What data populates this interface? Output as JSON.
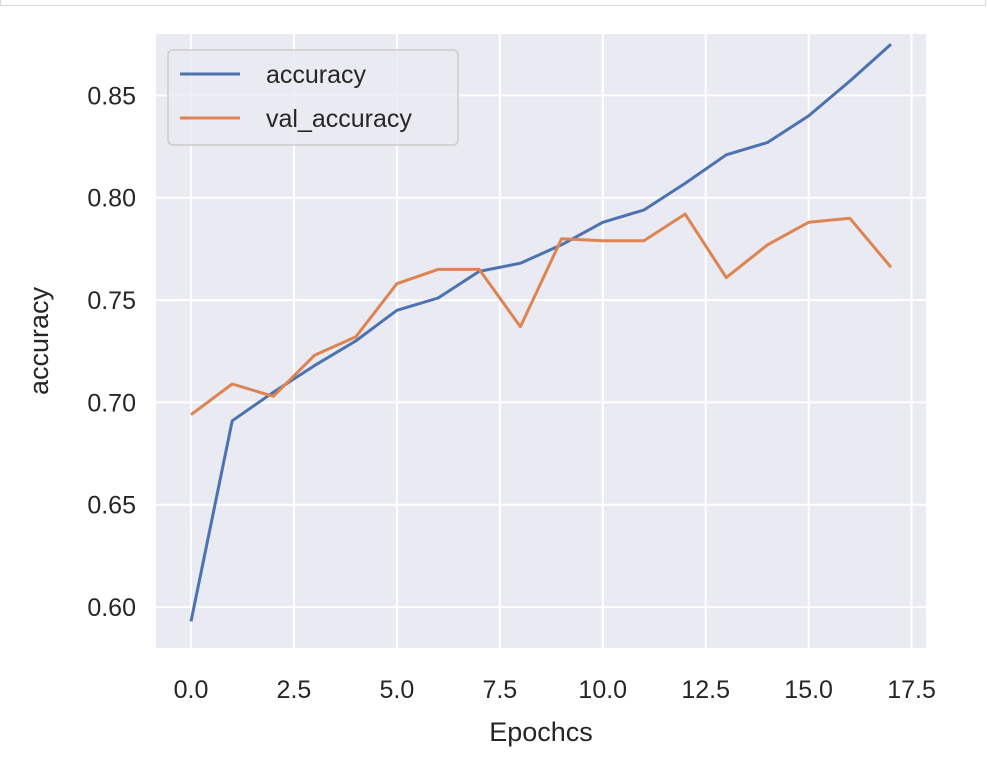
{
  "chart_data": {
    "type": "line",
    "title": "",
    "xlabel": "Epochcs",
    "ylabel": "accuracy",
    "xlim": [
      -0.85,
      17.85
    ],
    "ylim": [
      0.58,
      0.88
    ],
    "xticks": [
      "0.0",
      "2.5",
      "5.0",
      "7.5",
      "10.0",
      "12.5",
      "15.0",
      "17.5"
    ],
    "yticks": [
      "0.60",
      "0.65",
      "0.70",
      "0.75",
      "0.80",
      "0.85"
    ],
    "grid": true,
    "legend_position": "upper-left",
    "x": [
      0,
      1,
      2,
      3,
      4,
      5,
      6,
      7,
      8,
      9,
      10,
      11,
      12,
      13,
      14,
      15,
      16,
      17
    ],
    "series": [
      {
        "name": "accuracy",
        "color": "#4c72b0",
        "values": [
          0.593,
          0.691,
          0.705,
          0.718,
          0.73,
          0.745,
          0.751,
          0.764,
          0.768,
          0.777,
          0.788,
          0.794,
          0.807,
          0.821,
          0.827,
          0.84,
          0.857,
          0.875
        ]
      },
      {
        "name": "val_accuracy",
        "color": "#dd8452",
        "values": [
          0.694,
          0.709,
          0.703,
          0.723,
          0.732,
          0.758,
          0.765,
          0.765,
          0.737,
          0.78,
          0.779,
          0.779,
          0.792,
          0.761,
          0.777,
          0.788,
          0.79,
          0.766
        ]
      }
    ],
    "colors": {
      "plot_background": "#eaeaf2",
      "grid": "#ffffff",
      "text": "#262626"
    }
  }
}
